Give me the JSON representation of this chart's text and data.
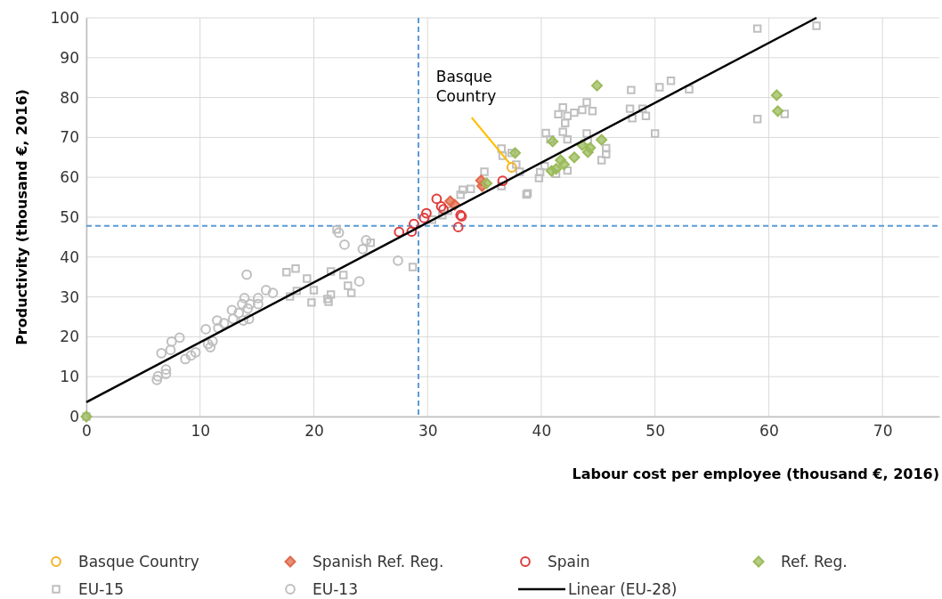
{
  "chart_data": {
    "type": "scatter",
    "xlabel": "Labour cost per employee (thousand €, 2016)",
    "ylabel": "Productivity (thousand €, 2016)",
    "xlim": [
      0,
      75
    ],
    "xticks": [
      0,
      10,
      20,
      30,
      40,
      50,
      60,
      70
    ],
    "ylim": [
      0,
      100
    ],
    "yticks": [
      0,
      10,
      20,
      30,
      40,
      50,
      60,
      70,
      80,
      90,
      100
    ],
    "grid": true,
    "legend": "bottom",
    "series": [
      {
        "name": "EU-15",
        "color": "#bfbfbf",
        "marker": "square",
        "x": [
          0,
          17.6,
          18.4,
          18.5,
          17.9,
          19.8,
          20.0,
          19.4,
          21.2,
          21.5,
          21.5,
          21.3,
          22.6,
          23.0,
          23.3,
          22.0,
          25.0,
          28.7,
          30.4,
          31.3,
          31.8,
          32.9,
          33.1,
          33.8,
          35.0,
          36.5,
          36.6,
          36.5,
          37.4,
          37.8,
          38.1,
          38.8,
          41.9,
          42.3,
          41.5,
          42.9,
          43.6,
          44.0,
          44.5,
          42.1,
          40.4,
          40.8,
          41.9,
          42.3,
          44.0,
          44.1,
          45.7,
          45.3,
          45.7,
          39.9,
          39.8,
          40.3,
          42.3,
          41.3,
          38.7,
          47.9,
          47.8,
          48.0,
          48.9,
          49.2,
          50.4,
          51.4,
          53.0,
          50.0,
          59.0,
          59.0,
          64.2,
          61.4
        ],
        "values": [
          0,
          36.2,
          37.1,
          31.5,
          30.1,
          28.6,
          31.7,
          34.6,
          29.5,
          30.6,
          36.4,
          28.8,
          35.5,
          32.8,
          31.0,
          46.9,
          43.6,
          37.5,
          49.4,
          50.5,
          51.6,
          55.6,
          56.9,
          57.1,
          61.4,
          67.2,
          65.4,
          57.8,
          66.1,
          63.2,
          61.4,
          56.0,
          77.5,
          75.4,
          75.8,
          76.2,
          76.9,
          78.8,
          76.6,
          73.6,
          71.1,
          69.5,
          71.4,
          69.5,
          71.0,
          69.1,
          67.3,
          64.3,
          65.8,
          61.3,
          59.8,
          62.8,
          61.7,
          60.9,
          55.7,
          81.9,
          77.2,
          74.8,
          77.2,
          75.4,
          82.6,
          84.2,
          82.1,
          71.0,
          74.6,
          97.3,
          98.0,
          75.9
        ]
      },
      {
        "name": "EU-13",
        "color": "#bfbfbf",
        "marker": "circle",
        "x": [
          6.2,
          6.3,
          7.0,
          7.0,
          6.6,
          7.5,
          8.2,
          7.4,
          8.7,
          9.2,
          9.6,
          10.5,
          10.7,
          10.9,
          11.1,
          11.5,
          11.6,
          12.1,
          12.8,
          12.9,
          13.4,
          13.7,
          13.8,
          13.9,
          14.1,
          14.2,
          14.3,
          14.4,
          15.1,
          15.1,
          15.8,
          16.4,
          22.2,
          22.7,
          24.3,
          24.6,
          27.4,
          24.0
        ],
        "values": [
          9.2,
          10.1,
          10.7,
          11.8,
          15.9,
          18.8,
          19.8,
          16.7,
          14.4,
          15.3,
          16.1,
          21.9,
          18.2,
          17.4,
          18.9,
          24.1,
          22.2,
          23.4,
          26.7,
          24.5,
          26.0,
          28.2,
          24.1,
          29.7,
          35.6,
          27.1,
          24.5,
          28.2,
          29.7,
          28.2,
          31.7,
          31.0,
          46.1,
          43.1,
          42.0,
          44.2,
          39.1,
          33.9
        ]
      },
      {
        "name": "Spain",
        "color": "#e03c3c",
        "marker": "circle",
        "x": [
          27.5,
          28.6,
          28.8,
          29.7,
          29.9,
          30.8,
          31.2,
          31.4,
          32.9,
          33.0,
          32.7,
          36.6
        ],
        "values": [
          46.3,
          46.4,
          48.3,
          49.8,
          51.0,
          54.6,
          52.7,
          52.0,
          50.5,
          50.2,
          47.5,
          59.1
        ]
      },
      {
        "name": "Spanish Ref. Reg.",
        "color": "#e0694a",
        "marker": "diamond",
        "x": [
          34.7,
          34.8,
          32.0,
          32.4
        ],
        "values": [
          59.2,
          57.8,
          54.0,
          53.1
        ]
      },
      {
        "name": "Ref. Reg.",
        "color": "#9bbb59",
        "marker": "diamond",
        "x": [
          0,
          35.2,
          37.7,
          41.0,
          41.7,
          40.9,
          42.0,
          42.9,
          44.1,
          44.3,
          44.9,
          45.3,
          43.6,
          60.7,
          60.8,
          41.3
        ],
        "values": [
          0,
          58.5,
          66.1,
          69.0,
          64.3,
          61.6,
          63.2,
          65.0,
          66.3,
          67.4,
          83.0,
          69.4,
          68.1,
          80.6,
          76.6,
          62.1
        ]
      },
      {
        "name": "Basque Country",
        "color": "#f4b128",
        "marker": "circle",
        "x": [
          37.4
        ],
        "values": [
          62.5
        ]
      },
      {
        "name": "Linear (EU-28)",
        "type": "line",
        "color": "#000000",
        "marker": "none",
        "line_style": "solid",
        "x": [
          0,
          64.2
        ],
        "values": [
          3.6,
          100
        ]
      }
    ],
    "ref_lines": [
      {
        "axis": "x",
        "value": 29.2,
        "color": "#5b9bd5",
        "line_style": "dashed"
      },
      {
        "axis": "y",
        "value": 47.8,
        "color": "#5b9bd5",
        "line_style": "dashed"
      }
    ],
    "annotations": [
      {
        "text": "Basque Country",
        "x": 37.4,
        "y": 62.5
      }
    ]
  }
}
